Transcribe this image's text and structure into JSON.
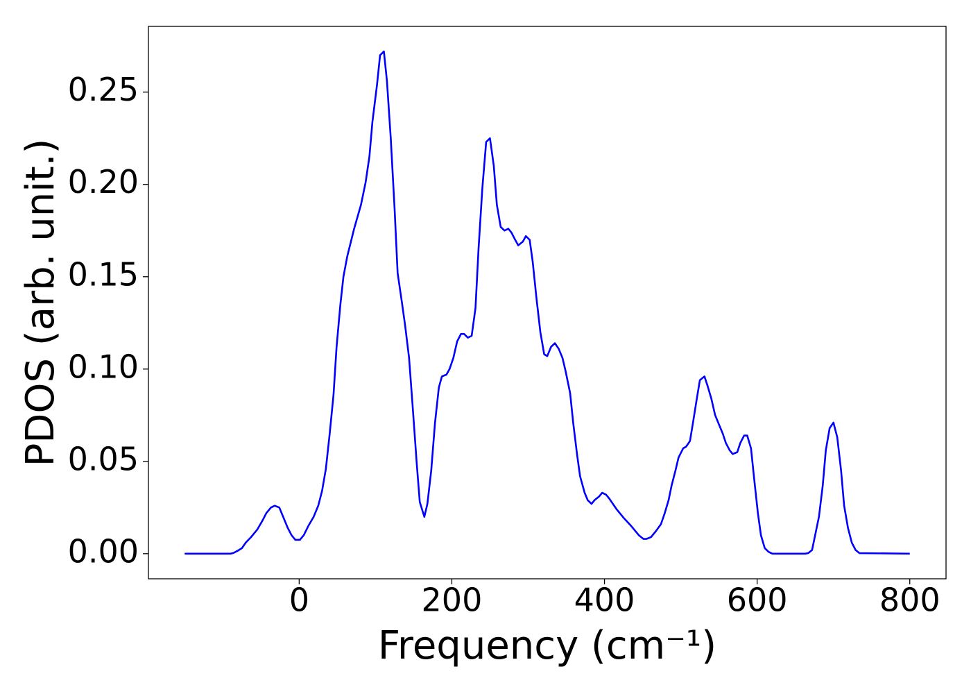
{
  "chart_data": {
    "type": "line",
    "xlabel": "Frequency (cm⁻¹)",
    "ylabel": "PDOS (arb. unit.)",
    "xlim": [
      -197.5,
      847.5
    ],
    "ylim": [
      -0.0136,
      0.2856
    ],
    "xticks": [
      0,
      200,
      400,
      600,
      800
    ],
    "yticks": [
      {
        "value": 0,
        "label": "0.00"
      },
      {
        "value": 0.05,
        "label": "0.05"
      },
      {
        "value": 0.1,
        "label": "0.10"
      },
      {
        "value": 0.15,
        "label": "0.15"
      },
      {
        "value": 0.2,
        "label": "0.20"
      },
      {
        "value": 0.25,
        "label": "0.25"
      }
    ],
    "grid": false,
    "x": [
      -150,
      -120,
      -90,
      -86,
      -81,
      -75,
      -70,
      -63,
      -55,
      -48,
      -43,
      -37,
      -32,
      -26,
      -21,
      -15,
      -10,
      -5,
      1,
      6,
      12,
      19,
      25,
      30,
      35,
      40,
      45,
      49,
      54,
      58,
      63,
      72,
      81,
      87,
      92,
      96,
      102,
      106,
      111,
      115,
      120,
      125,
      129,
      135,
      139,
      144,
      149,
      154,
      158,
      164,
      168,
      173,
      178,
      183,
      187,
      193,
      197,
      202,
      207,
      212,
      216,
      221,
      226,
      231,
      235,
      240,
      245,
      250,
      255,
      259,
      264,
      269,
      274,
      278,
      283,
      287,
      293,
      297,
      302,
      306,
      311,
      316,
      321,
      325,
      330,
      335,
      340,
      345,
      349,
      355,
      359,
      364,
      368,
      374,
      378,
      383,
      387,
      393,
      397,
      402,
      406,
      416,
      426,
      435,
      445,
      451,
      455,
      461,
      467,
      474,
      479,
      484,
      488,
      493,
      497,
      503,
      507,
      512,
      516,
      521,
      525,
      531,
      535,
      540,
      545,
      550,
      555,
      559,
      564,
      568,
      574,
      578,
      583,
      587,
      592,
      596,
      601,
      605,
      610,
      615,
      620,
      663,
      667,
      672,
      676,
      681,
      686,
      690,
      695,
      700,
      705,
      710,
      714,
      719,
      724,
      729,
      734,
      800
    ],
    "series": [
      {
        "color": "#0000ff",
        "values": [
          0,
          0,
          0,
          0.0004,
          0.0015,
          0.003,
          0.006,
          0.009,
          0.013,
          0.018,
          0.022,
          0.025,
          0.026,
          0.025,
          0.02,
          0.014,
          0.01,
          0.0075,
          0.0075,
          0.01,
          0.015,
          0.02,
          0.026,
          0.034,
          0.046,
          0.065,
          0.086,
          0.112,
          0.135,
          0.15,
          0.161,
          0.176,
          0.189,
          0.201,
          0.215,
          0.234,
          0.254,
          0.27,
          0.272,
          0.256,
          0.225,
          0.187,
          0.152,
          0.135,
          0.123,
          0.106,
          0.078,
          0.049,
          0.028,
          0.02,
          0.027,
          0.045,
          0.071,
          0.09,
          0.096,
          0.097,
          0.1,
          0.106,
          0.115,
          0.119,
          0.119,
          0.117,
          0.118,
          0.133,
          0.165,
          0.198,
          0.223,
          0.225,
          0.21,
          0.189,
          0.177,
          0.175,
          0.176,
          0.174,
          0.17,
          0.167,
          0.169,
          0.172,
          0.17,
          0.158,
          0.138,
          0.12,
          0.108,
          0.107,
          0.112,
          0.114,
          0.111,
          0.106,
          0.099,
          0.087,
          0.071,
          0.054,
          0.042,
          0.033,
          0.029,
          0.027,
          0.029,
          0.031,
          0.033,
          0.032,
          0.03,
          0.024,
          0.019,
          0.015,
          0.01,
          0.008,
          0.008,
          0.009,
          0.012,
          0.016,
          0.022,
          0.029,
          0.037,
          0.045,
          0.052,
          0.057,
          0.058,
          0.061,
          0.071,
          0.084,
          0.094,
          0.096,
          0.091,
          0.084,
          0.075,
          0.07,
          0.065,
          0.06,
          0.056,
          0.054,
          0.055,
          0.06,
          0.064,
          0.064,
          0.057,
          0.041,
          0.022,
          0.01,
          0.003,
          0.001,
          0,
          0,
          0.0003,
          0.002,
          0.01,
          0.02,
          0.037,
          0.056,
          0.068,
          0.071,
          0.063,
          0.045,
          0.026,
          0.014,
          0.006,
          0.002,
          0.0003,
          0
        ]
      }
    ]
  }
}
